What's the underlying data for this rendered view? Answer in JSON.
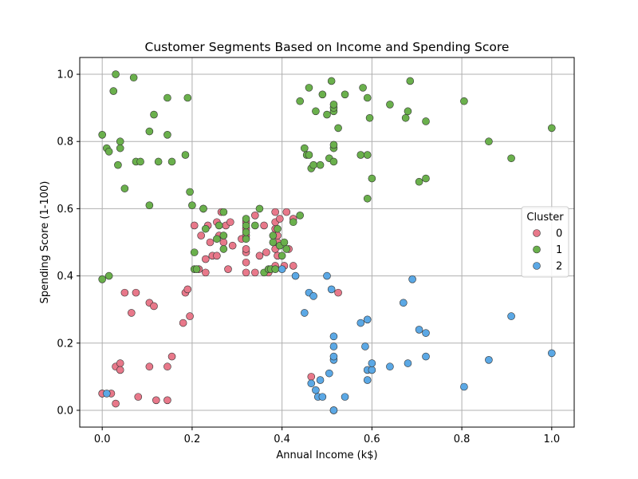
{
  "chart_data": {
    "type": "scatter",
    "title": "Customer Segments Based on Income and Spending Score",
    "xlabel": "Annual Income (k$)",
    "ylabel": "Spending Score (1-100)",
    "xlim": [
      -0.05,
      1.05
    ],
    "ylim": [
      -0.05,
      1.05
    ],
    "xticks": [
      0.0,
      0.2,
      0.4,
      0.6,
      0.8,
      1.0
    ],
    "yticks": [
      0.0,
      0.2,
      0.4,
      0.6,
      0.8,
      1.0
    ],
    "xtick_labels": [
      "0.0",
      "0.2",
      "0.4",
      "0.6",
      "0.8",
      "1.0"
    ],
    "ytick_labels": [
      "0.0",
      "0.2",
      "0.4",
      "0.6",
      "0.8",
      "1.0"
    ],
    "grid": true,
    "legend": {
      "title": "Cluster",
      "position": "center-right"
    },
    "series": [
      {
        "name": "0",
        "color": "#e8788a",
        "points": [
          [
            0.0,
            0.05
          ],
          [
            0.0,
            0.05
          ],
          [
            0.02,
            0.05
          ],
          [
            0.03,
            0.02
          ],
          [
            0.03,
            0.13
          ],
          [
            0.04,
            0.14
          ],
          [
            0.04,
            0.12
          ],
          [
            0.08,
            0.04
          ],
          [
            0.105,
            0.13
          ],
          [
            0.12,
            0.03
          ],
          [
            0.145,
            0.03
          ],
          [
            0.145,
            0.13
          ],
          [
            0.155,
            0.16
          ],
          [
            0.05,
            0.35
          ],
          [
            0.065,
            0.29
          ],
          [
            0.075,
            0.35
          ],
          [
            0.105,
            0.32
          ],
          [
            0.115,
            0.31
          ],
          [
            0.185,
            0.35
          ],
          [
            0.19,
            0.36
          ],
          [
            0.18,
            0.26
          ],
          [
            0.195,
            0.28
          ],
          [
            0.205,
            0.55
          ],
          [
            0.215,
            0.42
          ],
          [
            0.22,
            0.52
          ],
          [
            0.225,
            0.6
          ],
          [
            0.23,
            0.45
          ],
          [
            0.23,
            0.41
          ],
          [
            0.235,
            0.55
          ],
          [
            0.24,
            0.5
          ],
          [
            0.245,
            0.46
          ],
          [
            0.255,
            0.56
          ],
          [
            0.255,
            0.46
          ],
          [
            0.26,
            0.52
          ],
          [
            0.265,
            0.59
          ],
          [
            0.27,
            0.5
          ],
          [
            0.275,
            0.55
          ],
          [
            0.28,
            0.42
          ],
          [
            0.285,
            0.56
          ],
          [
            0.29,
            0.49
          ],
          [
            0.31,
            0.51
          ],
          [
            0.32,
            0.41
          ],
          [
            0.32,
            0.44
          ],
          [
            0.32,
            0.47
          ],
          [
            0.32,
            0.48
          ],
          [
            0.32,
            0.52
          ],
          [
            0.32,
            0.54
          ],
          [
            0.32,
            0.56
          ],
          [
            0.34,
            0.41
          ],
          [
            0.34,
            0.58
          ],
          [
            0.35,
            0.46
          ],
          [
            0.36,
            0.55
          ],
          [
            0.365,
            0.47
          ],
          [
            0.37,
            0.41
          ],
          [
            0.385,
            0.43
          ],
          [
            0.385,
            0.48
          ],
          [
            0.385,
            0.54
          ],
          [
            0.385,
            0.56
          ],
          [
            0.385,
            0.59
          ],
          [
            0.39,
            0.5
          ],
          [
            0.39,
            0.46
          ],
          [
            0.39,
            0.52
          ],
          [
            0.395,
            0.57
          ],
          [
            0.405,
            0.43
          ],
          [
            0.41,
            0.59
          ],
          [
            0.415,
            0.48
          ],
          [
            0.425,
            0.57
          ],
          [
            0.425,
            0.43
          ],
          [
            0.465,
            0.1
          ],
          [
            0.525,
            0.35
          ]
        ]
      },
      {
        "name": "1",
        "color": "#6ab04c",
        "points": [
          [
            0.0,
            0.82
          ],
          [
            0.01,
            0.78
          ],
          [
            0.015,
            0.77
          ],
          [
            0.025,
            0.95
          ],
          [
            0.03,
            1.0
          ],
          [
            0.035,
            0.73
          ],
          [
            0.04,
            0.8
          ],
          [
            0.04,
            0.78
          ],
          [
            0.05,
            0.66
          ],
          [
            0.07,
            0.99
          ],
          [
            0.075,
            0.74
          ],
          [
            0.085,
            0.74
          ],
          [
            0.105,
            0.61
          ],
          [
            0.105,
            0.83
          ],
          [
            0.115,
            0.88
          ],
          [
            0.125,
            0.74
          ],
          [
            0.145,
            0.93
          ],
          [
            0.145,
            0.82
          ],
          [
            0.155,
            0.74
          ],
          [
            0.185,
            0.76
          ],
          [
            0.19,
            0.93
          ],
          [
            0.195,
            0.65
          ],
          [
            0.2,
            0.61
          ],
          [
            0.0,
            0.39
          ],
          [
            0.015,
            0.4
          ],
          [
            0.205,
            0.47
          ],
          [
            0.205,
            0.42
          ],
          [
            0.21,
            0.42
          ],
          [
            0.225,
            0.6
          ],
          [
            0.23,
            0.54
          ],
          [
            0.255,
            0.51
          ],
          [
            0.26,
            0.55
          ],
          [
            0.27,
            0.59
          ],
          [
            0.27,
            0.48
          ],
          [
            0.27,
            0.52
          ],
          [
            0.32,
            0.51
          ],
          [
            0.32,
            0.53
          ],
          [
            0.32,
            0.55
          ],
          [
            0.32,
            0.57
          ],
          [
            0.34,
            0.55
          ],
          [
            0.35,
            0.6
          ],
          [
            0.36,
            0.41
          ],
          [
            0.37,
            0.42
          ],
          [
            0.375,
            0.42
          ],
          [
            0.38,
            0.5
          ],
          [
            0.38,
            0.52
          ],
          [
            0.385,
            0.42
          ],
          [
            0.39,
            0.54
          ],
          [
            0.395,
            0.49
          ],
          [
            0.4,
            0.46
          ],
          [
            0.405,
            0.5
          ],
          [
            0.41,
            0.48
          ],
          [
            0.425,
            0.56
          ],
          [
            0.44,
            0.58
          ],
          [
            0.44,
            0.92
          ],
          [
            0.45,
            0.78
          ],
          [
            0.455,
            0.76
          ],
          [
            0.46,
            0.96
          ],
          [
            0.46,
            0.76
          ],
          [
            0.465,
            0.72
          ],
          [
            0.47,
            0.73
          ],
          [
            0.475,
            0.89
          ],
          [
            0.485,
            0.73
          ],
          [
            0.49,
            0.94
          ],
          [
            0.5,
            0.88
          ],
          [
            0.505,
            0.75
          ],
          [
            0.51,
            0.98
          ],
          [
            0.515,
            0.89
          ],
          [
            0.515,
            0.9
          ],
          [
            0.515,
            0.91
          ],
          [
            0.515,
            0.78
          ],
          [
            0.515,
            0.79
          ],
          [
            0.515,
            0.74
          ],
          [
            0.525,
            0.84
          ],
          [
            0.54,
            0.94
          ],
          [
            0.575,
            0.76
          ],
          [
            0.58,
            0.96
          ],
          [
            0.59,
            0.93
          ],
          [
            0.59,
            0.76
          ],
          [
            0.59,
            0.63
          ],
          [
            0.595,
            0.87
          ],
          [
            0.6,
            0.69
          ],
          [
            0.64,
            0.91
          ],
          [
            0.675,
            0.87
          ],
          [
            0.68,
            0.89
          ],
          [
            0.685,
            0.98
          ],
          [
            0.705,
            0.68
          ],
          [
            0.72,
            0.69
          ],
          [
            0.72,
            0.86
          ],
          [
            0.805,
            0.92
          ],
          [
            0.86,
            0.8
          ],
          [
            0.91,
            0.75
          ],
          [
            1.0,
            0.84
          ]
        ]
      },
      {
        "name": "2",
        "color": "#5ba8e5",
        "points": [
          [
            0.01,
            0.05
          ],
          [
            0.4,
            0.42
          ],
          [
            0.43,
            0.4
          ],
          [
            0.45,
            0.29
          ],
          [
            0.46,
            0.35
          ],
          [
            0.465,
            0.08
          ],
          [
            0.47,
            0.34
          ],
          [
            0.475,
            0.06
          ],
          [
            0.48,
            0.04
          ],
          [
            0.485,
            0.09
          ],
          [
            0.49,
            0.04
          ],
          [
            0.5,
            0.4
          ],
          [
            0.505,
            0.11
          ],
          [
            0.51,
            0.36
          ],
          [
            0.515,
            0.0
          ],
          [
            0.515,
            0.0
          ],
          [
            0.515,
            0.15
          ],
          [
            0.515,
            0.16
          ],
          [
            0.515,
            0.19
          ],
          [
            0.515,
            0.22
          ],
          [
            0.54,
            0.04
          ],
          [
            0.575,
            0.26
          ],
          [
            0.585,
            0.19
          ],
          [
            0.59,
            0.09
          ],
          [
            0.59,
            0.12
          ],
          [
            0.59,
            0.27
          ],
          [
            0.6,
            0.12
          ],
          [
            0.6,
            0.14
          ],
          [
            0.64,
            0.13
          ],
          [
            0.67,
            0.32
          ],
          [
            0.68,
            0.14
          ],
          [
            0.69,
            0.39
          ],
          [
            0.705,
            0.24
          ],
          [
            0.72,
            0.16
          ],
          [
            0.72,
            0.23
          ],
          [
            0.805,
            0.07
          ],
          [
            0.86,
            0.15
          ],
          [
            0.91,
            0.28
          ],
          [
            1.0,
            0.17
          ]
        ]
      }
    ]
  }
}
